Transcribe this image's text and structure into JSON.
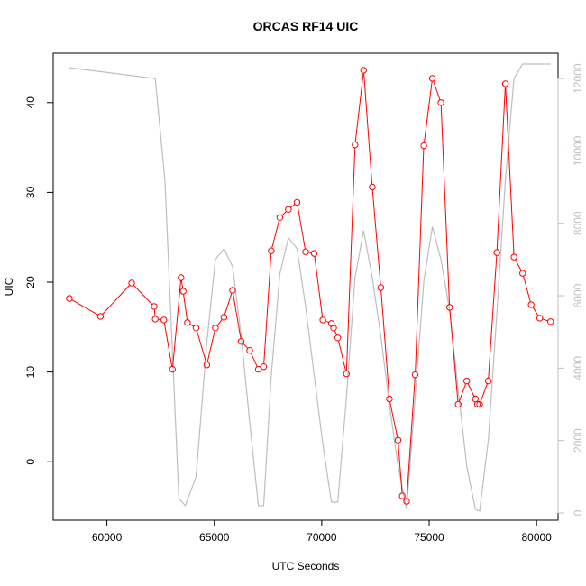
{
  "chart_data": {
    "type": "line",
    "title": "ORCAS RF14 UIC",
    "xlabel": "UTC Seconds",
    "ylabel": "UIC",
    "xlim": [
      57500,
      81000
    ],
    "ylim": [
      -6.5,
      45.5
    ],
    "y2lim": [
      -200,
      12700
    ],
    "x_ticks": [
      60000,
      65000,
      70000,
      75000,
      80000
    ],
    "y_ticks": [
      0,
      10,
      20,
      30,
      40
    ],
    "y2_ticks": [
      0,
      2000,
      4000,
      6000,
      8000,
      10000,
      12000
    ],
    "grid": false,
    "colors": {
      "uic": "#ff0000",
      "altitude": "#bebebe",
      "frame": "#000000",
      "right_axis": "#bfbfbf"
    },
    "series": [
      {
        "axis": "left",
        "style": "line-with-open-circles",
        "x": [
          58250,
          59700,
          61150,
          62200,
          62250,
          62650,
          63050,
          63450,
          63550,
          63750,
          64150,
          64650,
          65050,
          65450,
          65850,
          66250,
          66650,
          67050,
          67300,
          67650,
          68050,
          68450,
          68850,
          69250,
          69650,
          70050,
          70450,
          70550,
          70750,
          71150,
          71550,
          71950,
          72350,
          72750,
          73150,
          73550,
          73750,
          73950,
          74350,
          74750,
          75150,
          75550,
          75950,
          76350,
          76750,
          77150,
          77250,
          77350,
          77750,
          78150,
          78550,
          78950,
          79350,
          79750,
          80150,
          80650
        ],
        "y": [
          18.2,
          16.2,
          19.9,
          17.3,
          15.9,
          15.8,
          10.3,
          20.5,
          19.0,
          15.5,
          14.9,
          10.8,
          14.9,
          16.1,
          19.1,
          13.4,
          12.4,
          10.3,
          10.6,
          23.5,
          27.2,
          28.1,
          28.9,
          23.4,
          23.2,
          15.8,
          15.4,
          14.9,
          13.8,
          9.8,
          35.3,
          43.6,
          30.6,
          19.4,
          7.0,
          2.4,
          -3.8,
          -4.4,
          9.7,
          35.2,
          42.7,
          40.0,
          17.2,
          6.4,
          9.0,
          7.0,
          6.4,
          6.4,
          9.0,
          23.3,
          42.1,
          22.8,
          21.0,
          17.5,
          16.0,
          15.6
        ]
      },
      {
        "axis": "right",
        "style": "line",
        "x": [
          58250,
          62250,
          62700,
          63350,
          63650,
          64150,
          64650,
          65050,
          65450,
          65850,
          66250,
          66650,
          67050,
          67300,
          67650,
          68050,
          68450,
          68850,
          69250,
          69650,
          70050,
          70450,
          70750,
          71150,
          71550,
          71950,
          72350,
          72750,
          73150,
          73550,
          73950,
          74350,
          74750,
          75150,
          75550,
          75950,
          76350,
          76750,
          77150,
          77350,
          77750,
          78150,
          78550,
          78950,
          79350,
          80650
        ],
        "y": [
          12300,
          12000,
          9200,
          400,
          200,
          1000,
          4700,
          7000,
          7300,
          6800,
          4900,
          2500,
          200,
          200,
          3800,
          6600,
          7600,
          7300,
          5700,
          3800,
          1900,
          300,
          300,
          3200,
          6500,
          7800,
          6500,
          4900,
          3000,
          1300,
          100,
          3200,
          6400,
          7900,
          7000,
          5600,
          3400,
          1300,
          100,
          50,
          2000,
          5500,
          9200,
          12000,
          12400,
          12400
        ]
      }
    ]
  }
}
